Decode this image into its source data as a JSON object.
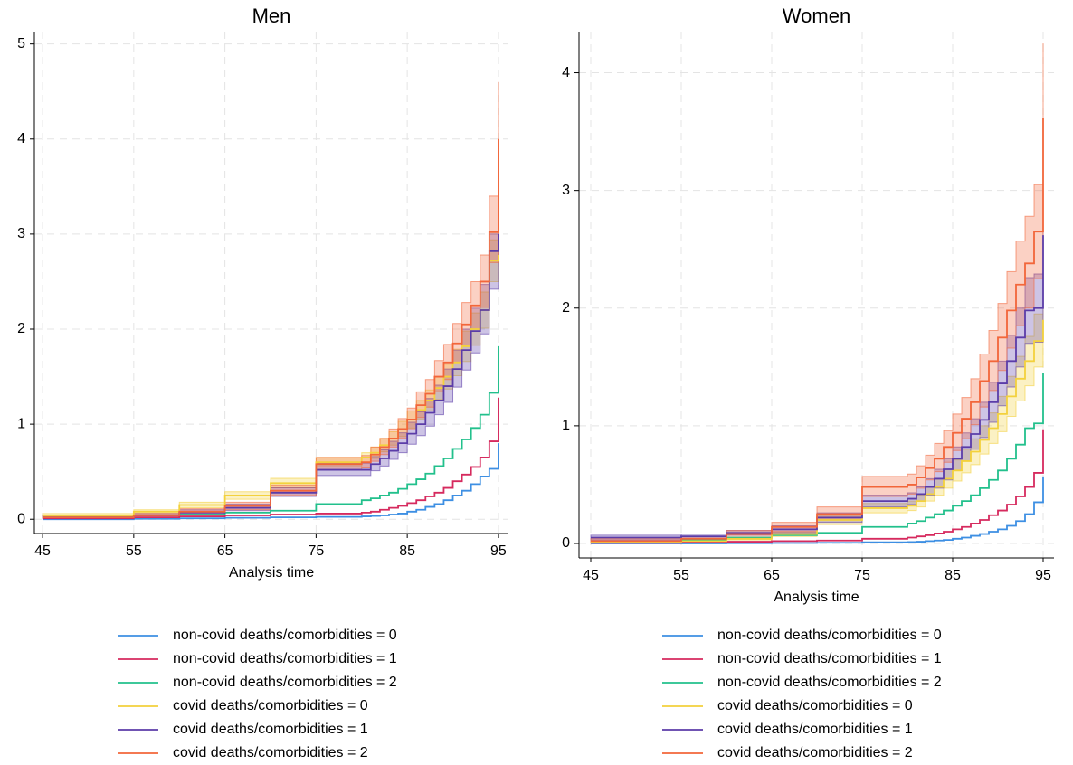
{
  "chart_data": [
    {
      "type": "line",
      "drawstyle": "steps-post",
      "title": "Men",
      "xlabel": "Analysis time",
      "grid": true,
      "x": [
        45,
        55,
        60,
        65,
        70,
        75,
        80,
        81,
        82,
        83,
        84,
        85,
        86,
        87,
        88,
        89,
        90,
        91,
        92,
        93,
        94,
        95
      ],
      "xlim": [
        44.1,
        96.1
      ],
      "ylim": [
        -0.15,
        5.13
      ],
      "xticks": [
        45,
        55,
        65,
        75,
        85,
        95
      ],
      "yticks": [
        0,
        1,
        2,
        3,
        4,
        5
      ],
      "series": [
        {
          "name": "non-covid deaths/comorbidities = 0",
          "color": "#3d8fe3",
          "values": [
            0,
            0.005,
            0.01,
            0.015,
            0.02,
            0.025,
            0.03,
            0.035,
            0.04,
            0.05,
            0.06,
            0.08,
            0.1,
            0.13,
            0.16,
            0.2,
            0.25,
            0.3,
            0.37,
            0.45,
            0.53,
            0.8
          ]
        },
        {
          "name": "non-covid deaths/comorbidities = 1",
          "color": "#d62a5e",
          "values": [
            0.01,
            0.02,
            0.03,
            0.04,
            0.05,
            0.06,
            0.07,
            0.08,
            0.1,
            0.12,
            0.14,
            0.17,
            0.2,
            0.24,
            0.28,
            0.33,
            0.4,
            0.47,
            0.55,
            0.65,
            0.82,
            1.28
          ]
        },
        {
          "name": "non-covid deaths/comorbidities = 2",
          "color": "#22c08c",
          "values": [
            0.02,
            0.04,
            0.05,
            0.07,
            0.09,
            0.16,
            0.2,
            0.22,
            0.25,
            0.28,
            0.32,
            0.37,
            0.42,
            0.48,
            0.56,
            0.64,
            0.74,
            0.84,
            0.96,
            1.1,
            1.33,
            1.82
          ]
        },
        {
          "name": "covid deaths/comorbidities = 0",
          "color": "#f3d13c",
          "values": [
            0.04,
            0.08,
            0.15,
            0.25,
            0.38,
            0.6,
            0.65,
            0.7,
            0.78,
            0.85,
            0.95,
            1.05,
            1.15,
            1.25,
            1.38,
            1.5,
            1.65,
            1.82,
            2.0,
            2.2,
            2.72,
            2.78
          ],
          "lower": [
            0.02,
            0.06,
            0.12,
            0.21,
            0.33,
            0.55,
            0.6,
            0.64,
            0.71,
            0.78,
            0.87,
            0.96,
            1.05,
            1.14,
            1.26,
            1.37,
            1.51,
            1.66,
            1.83,
            2.01,
            2.5,
            2.55
          ],
          "upper": [
            0.06,
            0.1,
            0.18,
            0.29,
            0.43,
            0.65,
            0.7,
            0.76,
            0.85,
            0.92,
            1.03,
            1.14,
            1.25,
            1.36,
            1.5,
            1.63,
            1.79,
            1.98,
            2.17,
            2.39,
            2.94,
            3.01
          ]
        },
        {
          "name": "covid deaths/comorbidities = 1",
          "color": "#5b3ca8",
          "values": [
            0.02,
            0.04,
            0.07,
            0.12,
            0.28,
            0.52,
            0.52,
            0.58,
            0.64,
            0.72,
            0.8,
            0.9,
            1.0,
            1.12,
            1.25,
            1.4,
            1.58,
            1.78,
            1.98,
            2.2,
            2.82,
            3.0
          ],
          "lower": [
            0.01,
            0.02,
            0.05,
            0.09,
            0.24,
            0.46,
            0.46,
            0.51,
            0.56,
            0.63,
            0.7,
            0.79,
            0.88,
            0.98,
            1.1,
            1.23,
            1.39,
            1.57,
            1.75,
            1.95,
            2.42,
            2.6
          ],
          "upper": [
            0.04,
            0.06,
            0.1,
            0.16,
            0.33,
            0.59,
            0.59,
            0.66,
            0.73,
            0.82,
            0.91,
            1.02,
            1.13,
            1.27,
            1.41,
            1.58,
            1.78,
            2.0,
            2.22,
            2.47,
            3.0,
            3.25
          ]
        },
        {
          "name": "covid deaths/comorbidities = 2",
          "color": "#f2663a",
          "values": [
            0.02,
            0.04,
            0.08,
            0.14,
            0.3,
            0.58,
            0.6,
            0.68,
            0.76,
            0.85,
            0.95,
            1.05,
            1.2,
            1.32,
            1.5,
            1.65,
            1.85,
            2.05,
            2.25,
            2.5,
            3.02,
            4.0
          ],
          "lower": [
            0.01,
            0.02,
            0.05,
            0.1,
            0.25,
            0.52,
            0.54,
            0.61,
            0.68,
            0.76,
            0.85,
            0.94,
            1.07,
            1.18,
            1.34,
            1.47,
            1.65,
            1.83,
            2.0,
            2.23,
            2.7,
            3.5
          ],
          "upper": [
            0.04,
            0.06,
            0.11,
            0.18,
            0.36,
            0.65,
            0.67,
            0.76,
            0.85,
            0.95,
            1.06,
            1.17,
            1.34,
            1.47,
            1.67,
            1.84,
            2.06,
            2.28,
            2.5,
            2.78,
            3.4,
            4.6
          ]
        }
      ]
    },
    {
      "type": "line",
      "drawstyle": "steps-post",
      "title": "Women",
      "xlabel": "Analysis time",
      "grid": true,
      "x": [
        45,
        55,
        60,
        65,
        70,
        75,
        80,
        81,
        82,
        83,
        84,
        85,
        86,
        87,
        88,
        89,
        90,
        91,
        92,
        93,
        94,
        95
      ],
      "xlim": [
        43.7,
        96.2
      ],
      "ylim": [
        -0.123,
        4.35
      ],
      "xticks": [
        45,
        55,
        65,
        75,
        85,
        95
      ],
      "yticks": [
        0,
        1,
        2,
        3,
        4
      ],
      "series": [
        {
          "name": "non-covid deaths/comorbidities = 0",
          "color": "#3d8fe3",
          "values": [
            0,
            0,
            0.002,
            0.004,
            0.006,
            0.01,
            0.012,
            0.015,
            0.02,
            0.025,
            0.03,
            0.04,
            0.05,
            0.065,
            0.08,
            0.1,
            0.12,
            0.15,
            0.19,
            0.25,
            0.35,
            0.57
          ]
        },
        {
          "name": "non-covid deaths/comorbidities = 1",
          "color": "#d62a5e",
          "values": [
            0.005,
            0.01,
            0.015,
            0.02,
            0.025,
            0.04,
            0.05,
            0.06,
            0.07,
            0.085,
            0.1,
            0.12,
            0.14,
            0.17,
            0.2,
            0.24,
            0.28,
            0.33,
            0.4,
            0.48,
            0.6,
            0.97
          ]
        },
        {
          "name": "non-covid deaths/comorbidities = 2",
          "color": "#22c08c",
          "values": [
            0.01,
            0.03,
            0.05,
            0.07,
            0.09,
            0.14,
            0.17,
            0.19,
            0.22,
            0.25,
            0.28,
            0.32,
            0.36,
            0.41,
            0.47,
            0.54,
            0.62,
            0.72,
            0.84,
            0.98,
            1.02,
            1.45
          ]
        },
        {
          "name": "covid deaths/comorbidities = 0",
          "color": "#f3d13c",
          "values": [
            0.01,
            0.02,
            0.04,
            0.08,
            0.2,
            0.3,
            0.32,
            0.36,
            0.42,
            0.48,
            0.55,
            0.62,
            0.7,
            0.78,
            0.88,
            0.98,
            1.1,
            1.25,
            1.4,
            1.55,
            1.72,
            1.9
          ],
          "lower": [
            0,
            0.01,
            0.03,
            0.06,
            0.16,
            0.26,
            0.28,
            0.31,
            0.36,
            0.41,
            0.47,
            0.53,
            0.6,
            0.67,
            0.76,
            0.85,
            0.95,
            1.08,
            1.21,
            1.34,
            1.5,
            1.65
          ],
          "upper": [
            0.02,
            0.03,
            0.05,
            0.1,
            0.24,
            0.34,
            0.36,
            0.41,
            0.48,
            0.55,
            0.63,
            0.71,
            0.8,
            0.89,
            1.0,
            1.11,
            1.25,
            1.42,
            1.59,
            1.76,
            1.95,
            2.15
          ]
        },
        {
          "name": "covid deaths/comorbidities = 1",
          "color": "#5b3ca8",
          "values": [
            0.05,
            0.06,
            0.09,
            0.12,
            0.22,
            0.36,
            0.38,
            0.42,
            0.48,
            0.55,
            0.63,
            0.72,
            0.82,
            0.93,
            1.05,
            1.2,
            1.36,
            1.55,
            1.75,
            1.98,
            2.0,
            2.62
          ],
          "lower": [
            0.03,
            0.04,
            0.07,
            0.09,
            0.18,
            0.31,
            0.33,
            0.36,
            0.41,
            0.47,
            0.54,
            0.62,
            0.7,
            0.8,
            0.9,
            1.03,
            1.17,
            1.33,
            1.5,
            1.7,
            1.71,
            2.2
          ],
          "upper": [
            0.07,
            0.08,
            0.11,
            0.15,
            0.26,
            0.41,
            0.43,
            0.48,
            0.55,
            0.63,
            0.72,
            0.82,
            0.94,
            1.06,
            1.2,
            1.37,
            1.55,
            1.77,
            2.0,
            2.26,
            2.29,
            3.05
          ]
        },
        {
          "name": "covid deaths/comorbidities = 2",
          "color": "#f2663a",
          "values": [
            0.02,
            0.04,
            0.08,
            0.14,
            0.25,
            0.48,
            0.5,
            0.56,
            0.64,
            0.72,
            0.82,
            0.94,
            1.06,
            1.2,
            1.38,
            1.55,
            1.75,
            1.98,
            2.2,
            2.38,
            2.65,
            3.62
          ],
          "lower": [
            0.01,
            0.02,
            0.05,
            0.1,
            0.2,
            0.4,
            0.42,
            0.47,
            0.54,
            0.61,
            0.69,
            0.79,
            0.89,
            1.01,
            1.16,
            1.3,
            1.47,
            1.66,
            1.85,
            2.0,
            2.25,
            3.0
          ],
          "upper": [
            0.04,
            0.06,
            0.11,
            0.18,
            0.31,
            0.57,
            0.59,
            0.66,
            0.75,
            0.85,
            0.96,
            1.1,
            1.24,
            1.4,
            1.61,
            1.81,
            2.04,
            2.31,
            2.57,
            2.78,
            3.05,
            4.25
          ]
        }
      ]
    }
  ]
}
